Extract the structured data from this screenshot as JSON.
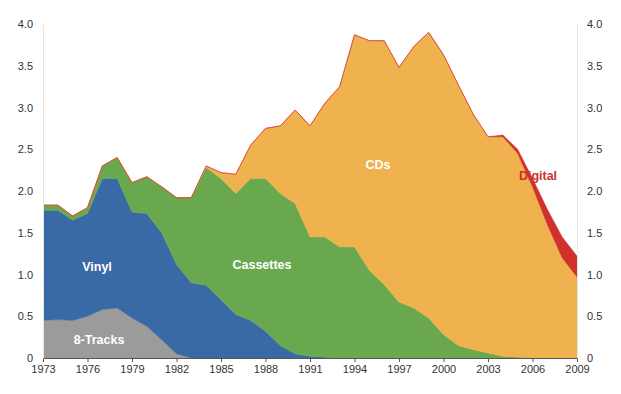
{
  "chart_data": {
    "type": "area",
    "stacked": true,
    "x": [
      1973,
      1974,
      1975,
      1976,
      1977,
      1978,
      1979,
      1980,
      1981,
      1982,
      1983,
      1984,
      1985,
      1986,
      1987,
      1988,
      1989,
      1990,
      1991,
      1992,
      1993,
      1994,
      1995,
      1996,
      1997,
      1998,
      1999,
      2000,
      2001,
      2002,
      2003,
      2004,
      2005,
      2006,
      2007,
      2008,
      2009
    ],
    "xlim": [
      1973,
      2009
    ],
    "xticks": [
      1973,
      1976,
      1979,
      1982,
      1985,
      1988,
      1991,
      1994,
      1997,
      2000,
      2003,
      2006,
      2009
    ],
    "ylim": [
      0,
      4
    ],
    "yticks": [
      0,
      0.5,
      {
        "value": 1,
        "label": "1.0"
      },
      1.5,
      {
        "value": 2,
        "label": "2.0"
      },
      2.5,
      {
        "value": 3,
        "label": "3.0"
      },
      3.5,
      {
        "value": 4,
        "label": "4.0"
      }
    ],
    "series": [
      {
        "name": "8-Tracks",
        "color": "#9b9b9b",
        "values": [
          0.45,
          0.46,
          0.45,
          0.5,
          0.58,
          0.6,
          0.48,
          0.38,
          0.22,
          0.05,
          0,
          0,
          0,
          0,
          0,
          0,
          0,
          0,
          0,
          0,
          0,
          0,
          0,
          0,
          0,
          0,
          0,
          0,
          0,
          0,
          0,
          0,
          0,
          0,
          0,
          0,
          0
        ]
      },
      {
        "name": "Vinyl",
        "color": "#3a6aa6",
        "values": [
          1.32,
          1.31,
          1.2,
          1.23,
          1.57,
          1.55,
          1.27,
          1.35,
          1.28,
          1.07,
          0.9,
          0.87,
          0.7,
          0.52,
          0.45,
          0.32,
          0.15,
          0.05,
          0.02,
          0.01,
          0,
          0,
          0,
          0,
          0,
          0,
          0,
          0,
          0,
          0,
          0,
          0,
          0,
          0,
          0,
          0,
          0
        ]
      },
      {
        "name": "Cassettes",
        "color": "#69a84f",
        "values": [
          0.06,
          0.06,
          0.05,
          0.07,
          0.15,
          0.25,
          0.35,
          0.44,
          0.55,
          0.8,
          1.02,
          1.41,
          1.45,
          1.45,
          1.7,
          1.83,
          1.82,
          1.8,
          1.43,
          1.44,
          1.33,
          1.33,
          1.05,
          0.88,
          0.67,
          0.6,
          0.48,
          0.28,
          0.15,
          0.1,
          0.06,
          0.02,
          0.01,
          0,
          0,
          0,
          0
        ]
      },
      {
        "name": "CDs",
        "color": "#efb24e",
        "values": [
          0,
          0,
          0,
          0,
          0,
          0,
          0,
          0,
          0,
          0,
          0,
          0.02,
          0.07,
          0.23,
          0.4,
          0.6,
          0.81,
          1.12,
          1.33,
          1.6,
          1.92,
          2.54,
          2.75,
          2.92,
          2.81,
          3.13,
          3.42,
          3.35,
          3.12,
          2.82,
          2.59,
          2.63,
          2.44,
          2.05,
          1.6,
          1.2,
          0.97
        ]
      },
      {
        "name": "Digital",
        "color": "#d0312d",
        "values": [
          0,
          0,
          0,
          0,
          0,
          0,
          0,
          0,
          0,
          0,
          0,
          0,
          0,
          0,
          0,
          0,
          0,
          0,
          0,
          0,
          0,
          0,
          0,
          0,
          0,
          0,
          0,
          0,
          0,
          0,
          0,
          0.02,
          0.05,
          0.1,
          0.18,
          0.25,
          0.25
        ]
      }
    ]
  }
}
